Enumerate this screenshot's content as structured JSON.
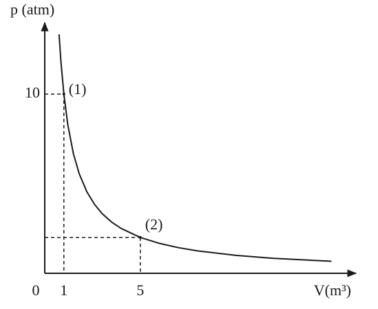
{
  "chart_data": {
    "type": "line",
    "x_label": "V(m³)",
    "y_label": "p (atm)",
    "origin_label": "0",
    "xlim": [
      0,
      16.2
    ],
    "ylim": [
      0,
      13.9
    ],
    "xticks": [
      1,
      5
    ],
    "yticks": [
      10
    ],
    "series": [
      {
        "color": "#1a1a1a",
        "x": [
          0.75,
          0.85,
          1,
          1.2,
          1.5,
          1.8,
          2.2,
          2.6,
          3,
          3.5,
          4,
          5,
          6,
          7,
          8,
          10,
          12,
          15
        ],
        "values": [
          13.33,
          11.76,
          10,
          8.33,
          6.67,
          5.56,
          4.55,
          3.85,
          3.33,
          2.86,
          2.5,
          2,
          1.67,
          1.43,
          1.25,
          1,
          0.83,
          0.67
        ]
      }
    ],
    "points": [
      {
        "label": "(1)",
        "x": 1,
        "y": 10
      },
      {
        "label": "(2)",
        "x": 5,
        "y": 2
      }
    ]
  }
}
